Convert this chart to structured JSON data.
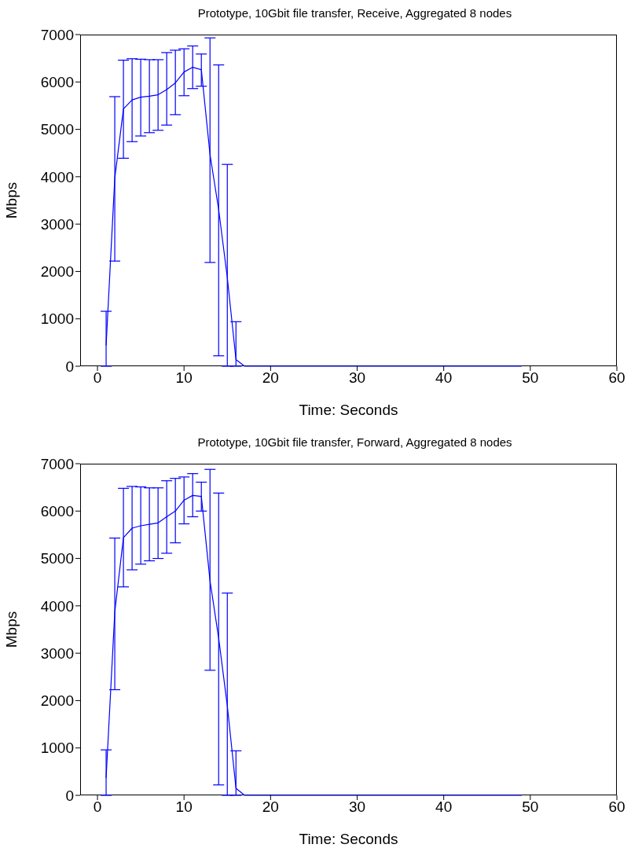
{
  "chart_data": [
    {
      "type": "line",
      "title": "Prototype, 10Gbit file transfer, Receive, Aggregated 8 nodes",
      "xlabel": "Time: Seconds",
      "ylabel": "Mbps",
      "xlim": [
        -2,
        60
      ],
      "xticks": [
        0,
        10,
        20,
        30,
        40,
        50,
        60
      ],
      "ylim": [
        0,
        7000
      ],
      "yticks": [
        0,
        1000,
        2000,
        3000,
        4000,
        5000,
        6000,
        7000
      ],
      "marker": "none",
      "line_style": "solid",
      "x": [
        1,
        2,
        3,
        4,
        5,
        6,
        7,
        8,
        9,
        10,
        11,
        12,
        13,
        14,
        15,
        16,
        17,
        18,
        19,
        20,
        21,
        22,
        23,
        24,
        25,
        26,
        27,
        28,
        29,
        30,
        31,
        32,
        33,
        34,
        35,
        36,
        37,
        38,
        39,
        40,
        41,
        42,
        43,
        44,
        45,
        46,
        47,
        48,
        49
      ],
      "series": [
        {
          "color": "#0000ff",
          "values": [
            440,
            3970,
            5430,
            5620,
            5680,
            5700,
            5730,
            5840,
            5980,
            6210,
            6310,
            6260,
            4470,
            3310,
            1870,
            140,
            0,
            0,
            0,
            0,
            0,
            0,
            0,
            0,
            0,
            0,
            0,
            0,
            0,
            0,
            0,
            0,
            0,
            0,
            0,
            0,
            0,
            0,
            0,
            0,
            0,
            0,
            0,
            0,
            0,
            0,
            0,
            0,
            0
          ],
          "errors": [
            [
              0,
              1160
            ],
            [
              2220,
              5690
            ],
            [
              4390,
              6460
            ],
            [
              4740,
              6490
            ],
            [
              4860,
              6480
            ],
            [
              4930,
              6470
            ],
            [
              4980,
              6470
            ],
            [
              5090,
              6620
            ],
            [
              5310,
              6670
            ],
            [
              5710,
              6700
            ],
            [
              5860,
              6760
            ],
            [
              5910,
              6590
            ],
            [
              2190,
              6930
            ],
            [
              220,
              6360
            ],
            [
              0,
              4260
            ],
            [
              0,
              940
            ],
            null,
            null,
            null,
            null,
            null,
            null,
            null,
            null,
            null,
            null,
            null,
            null,
            null,
            null,
            null,
            null,
            null,
            null,
            null,
            null,
            null,
            null,
            null,
            null,
            null,
            null,
            null,
            null,
            null,
            null,
            null,
            null,
            null
          ]
        }
      ]
    },
    {
      "type": "line",
      "title": "Prototype, 10Gbit file transfer, Forward, Aggregated 8 nodes",
      "xlabel": "Time: Seconds",
      "ylabel": "Mbps",
      "xlim": [
        -2,
        60
      ],
      "xticks": [
        0,
        10,
        20,
        30,
        40,
        50,
        60
      ],
      "ylim": [
        0,
        7000
      ],
      "yticks": [
        0,
        1000,
        2000,
        3000,
        4000,
        5000,
        6000,
        7000
      ],
      "marker": "none",
      "line_style": "solid",
      "x": [
        1,
        2,
        3,
        4,
        5,
        6,
        7,
        8,
        9,
        10,
        11,
        12,
        13,
        14,
        15,
        16,
        17,
        18,
        19,
        20,
        21,
        22,
        23,
        24,
        25,
        26,
        27,
        28,
        29,
        30,
        31,
        32,
        33,
        34,
        35,
        36,
        37,
        38,
        39,
        40,
        41,
        42,
        43,
        44,
        45,
        46,
        47,
        48,
        49
      ],
      "series": [
        {
          "color": "#0000ff",
          "values": [
            370,
            3870,
            5440,
            5640,
            5690,
            5720,
            5750,
            5880,
            6000,
            6230,
            6330,
            6310,
            4530,
            3320,
            1890,
            150,
            0,
            0,
            0,
            0,
            0,
            0,
            0,
            0,
            0,
            0,
            0,
            0,
            0,
            0,
            0,
            0,
            0,
            0,
            0,
            0,
            0,
            0,
            0,
            0,
            0,
            0,
            0,
            0,
            0,
            0,
            0,
            0,
            0
          ],
          "errors": [
            [
              0,
              960
            ],
            [
              2230,
              5430
            ],
            [
              4400,
              6480
            ],
            [
              4760,
              6520
            ],
            [
              4880,
              6510
            ],
            [
              4950,
              6490
            ],
            [
              5000,
              6490
            ],
            [
              5110,
              6640
            ],
            [
              5330,
              6690
            ],
            [
              5730,
              6720
            ],
            [
              5880,
              6790
            ],
            [
              6000,
              6610
            ],
            [
              2640,
              6880
            ],
            [
              220,
              6380
            ],
            [
              0,
              4270
            ],
            [
              0,
              940
            ],
            null,
            null,
            null,
            null,
            null,
            null,
            null,
            null,
            null,
            null,
            null,
            null,
            null,
            null,
            null,
            null,
            null,
            null,
            null,
            null,
            null,
            null,
            null,
            null,
            null,
            null,
            null,
            null,
            null,
            null,
            null,
            null,
            null
          ]
        }
      ]
    }
  ]
}
